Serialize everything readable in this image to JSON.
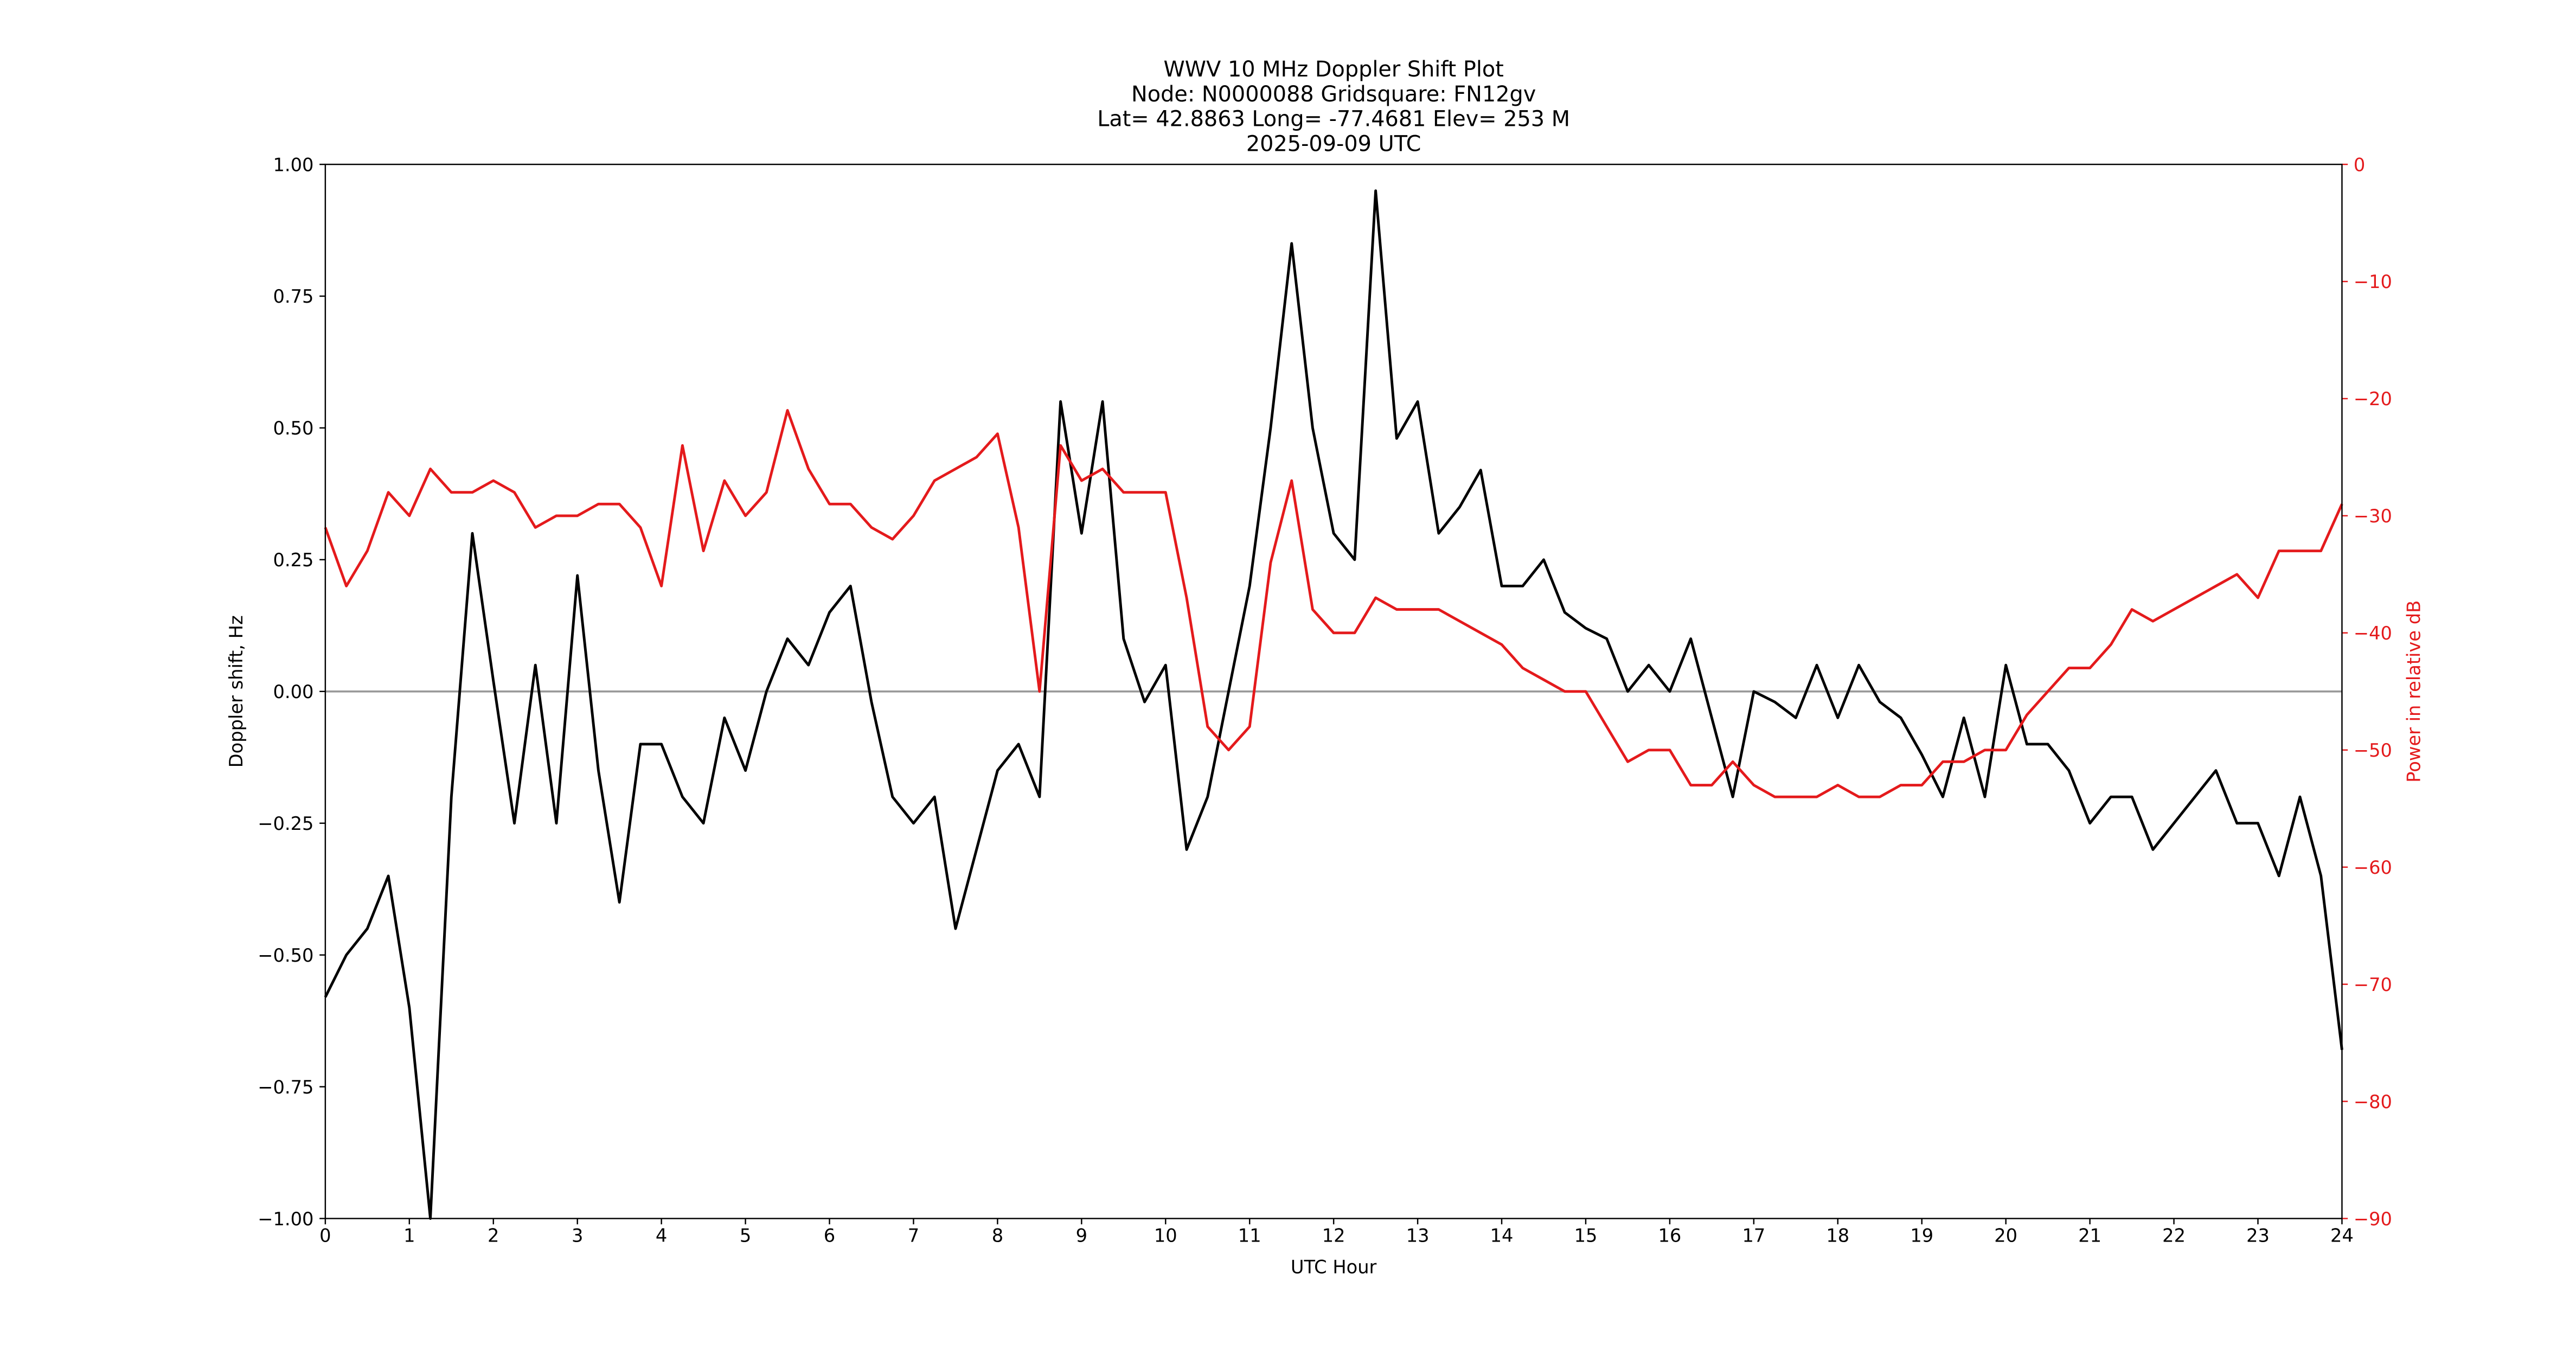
{
  "chart_data": {
    "type": "line",
    "title": [
      "WWV 10 MHz Doppler Shift Plot",
      "Node:  N0000088     Gridsquare:  FN12gv",
      "Lat= 42.8863    Long= -77.4681    Elev= 253 M",
      "2025-09-09  UTC"
    ],
    "xlabel": "UTC Hour",
    "ylabel": "Doppler shift, Hz",
    "y2label": "Power in relative dB",
    "x": [
      0,
      0.25,
      0.5,
      0.75,
      1,
      1.25,
      1.5,
      1.75,
      2,
      2.25,
      2.5,
      2.75,
      3,
      3.25,
      3.5,
      3.75,
      4,
      4.25,
      4.5,
      4.75,
      5,
      5.25,
      5.5,
      5.75,
      6,
      6.25,
      6.5,
      6.75,
      7,
      7.25,
      7.5,
      7.75,
      8,
      8.25,
      8.5,
      8.75,
      9,
      9.25,
      9.5,
      9.75,
      10,
      10.25,
      10.5,
      10.75,
      11,
      11.25,
      11.5,
      11.75,
      12,
      12.25,
      12.5,
      12.75,
      13,
      13.25,
      13.5,
      13.75,
      14,
      14.25,
      14.5,
      14.75,
      15,
      15.25,
      15.5,
      15.75,
      16,
      16.25,
      16.5,
      16.75,
      17,
      17.25,
      17.5,
      17.75,
      18,
      18.25,
      18.5,
      18.75,
      19,
      19.25,
      19.5,
      19.75,
      20,
      20.25,
      20.5,
      20.75,
      21,
      21.25,
      21.5,
      21.75,
      22,
      22.25,
      22.5,
      22.75,
      23,
      23.25,
      23.5,
      23.75,
      24
    ],
    "series": [
      {
        "color": "#000000",
        "values": [
          -0.58,
          -0.5,
          -0.45,
          -0.35,
          -0.6,
          -1.0,
          -0.2,
          0.3,
          0.02,
          -0.25,
          0.05,
          -0.25,
          0.22,
          -0.15,
          -0.4,
          -0.1,
          -0.1,
          -0.2,
          -0.25,
          -0.05,
          -0.15,
          0.0,
          0.1,
          0.05,
          0.15,
          0.2,
          -0.02,
          -0.2,
          -0.25,
          -0.2,
          -0.45,
          -0.3,
          -0.15,
          -0.1,
          -0.2,
          0.55,
          0.3,
          0.55,
          0.1,
          -0.02,
          0.05,
          -0.3,
          -0.2,
          0.0,
          0.2,
          0.5,
          0.85,
          0.5,
          0.3,
          0.25,
          0.95,
          0.48,
          0.55,
          0.3,
          0.35,
          0.42,
          0.2,
          0.2,
          0.25,
          0.15,
          0.12,
          0.1,
          0.0,
          0.05,
          0.0,
          0.1,
          -0.05,
          -0.2,
          0.0,
          -0.02,
          -0.05,
          0.05,
          -0.05,
          0.05,
          -0.02,
          -0.05,
          -0.12,
          -0.2,
          -0.05,
          -0.2,
          0.05,
          -0.1,
          -0.1,
          -0.15,
          -0.25,
          -0.2,
          -0.2,
          -0.3,
          -0.25,
          -0.2,
          -0.15,
          -0.25,
          -0.25,
          -0.35,
          -0.2,
          -0.35,
          -0.68
        ]
      },
      {
        "color": "#e41a1c",
        "axis": "y2",
        "values": [
          -31,
          -36,
          -33,
          -28,
          -30,
          -26,
          -28,
          -28,
          -27,
          -28,
          -31,
          -30,
          -30,
          -29,
          -29,
          -31,
          -36,
          -24,
          -33,
          -27,
          -30,
          -28,
          -21,
          -26,
          -29,
          -29,
          -31,
          -32,
          -30,
          -27,
          -26,
          -25,
          -23,
          -31,
          -45,
          -24,
          -27,
          -26,
          -28,
          -28,
          -28,
          -37,
          -48,
          -50,
          -48,
          -34,
          -27,
          -38,
          -40,
          -40,
          -37,
          -38,
          -38,
          -38,
          -39,
          -40,
          -41,
          -43,
          -44,
          -45,
          -45,
          -48,
          -51,
          -50,
          -50,
          -53,
          -53,
          -51,
          -53,
          -54,
          -54,
          -54,
          -53,
          -54,
          -54,
          -53,
          -53,
          -51,
          -51,
          -50,
          -50,
          -47,
          -45,
          -43,
          -43,
          -41,
          -38,
          -39,
          -38,
          -37,
          -36,
          -35,
          -37,
          -33,
          -33,
          -33,
          -29
        ]
      }
    ],
    "xlim": [
      0,
      24
    ],
    "xticks": [
      0,
      1,
      2,
      3,
      4,
      5,
      6,
      7,
      8,
      9,
      10,
      11,
      12,
      13,
      14,
      15,
      16,
      17,
      18,
      19,
      20,
      21,
      22,
      23,
      24
    ],
    "ylim": [
      -1,
      1
    ],
    "yticks": [
      {
        "value": -1,
        "label": "−1.00"
      },
      {
        "value": -0.75,
        "label": "−0.75"
      },
      {
        "value": -0.5,
        "label": "−0.50"
      },
      {
        "value": -0.25,
        "label": "−0.25"
      },
      {
        "value": 0,
        "label": "0.00"
      },
      {
        "value": 0.25,
        "label": "0.25"
      },
      {
        "value": 0.5,
        "label": "0.50"
      },
      {
        "value": 0.75,
        "label": "0.75"
      },
      {
        "value": 1,
        "label": "1.00"
      }
    ],
    "y2lim": [
      -90,
      0
    ],
    "y2ticks": [
      {
        "value": -90,
        "label": "−90"
      },
      {
        "value": -80,
        "label": "−80"
      },
      {
        "value": -70,
        "label": "−70"
      },
      {
        "value": -60,
        "label": "−60"
      },
      {
        "value": -50,
        "label": "−50"
      },
      {
        "value": -40,
        "label": "−40"
      },
      {
        "value": -30,
        "label": "−30"
      },
      {
        "value": -20,
        "label": "−20"
      },
      {
        "value": -10,
        "label": "−10"
      },
      0
    ],
    "y2color": "#e41a1c"
  }
}
